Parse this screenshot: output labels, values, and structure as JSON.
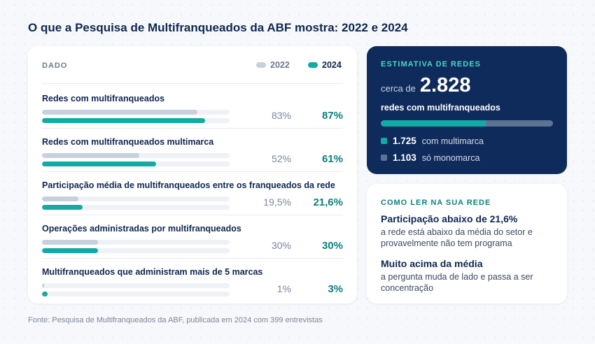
{
  "title": "O que a Pesquisa de Multifranqueados da ABF mostra: 2022 e 2024",
  "colors": {
    "bar_2022": "#c7d1dd",
    "bar_2024": "#13a9a5",
    "value_2024": "#0c7f7c",
    "navy": "#0f2b5b",
    "teal": "#13a9a5",
    "slate": "#5d7394"
  },
  "table": {
    "column_label": "DADO",
    "legend": [
      "2022",
      "2024"
    ]
  },
  "chart_data": {
    "type": "bar",
    "categories": [
      "Redes com multifranqueados",
      "Redes com multifranqueados multimarca",
      "Participação média de multifranqueados entre os franqueados da rede",
      "Operações administradas por multifranqueados",
      "Multifranqueados que administram mais de 5 marcas"
    ],
    "series": [
      {
        "name": "2022",
        "values": [
          83,
          52,
          19.5,
          30,
          1
        ],
        "labels": [
          "83%",
          "52%",
          "19,5%",
          "30%",
          "1%"
        ]
      },
      {
        "name": "2024",
        "values": [
          87,
          61,
          21.6,
          30,
          3
        ],
        "labels": [
          "87%",
          "61%",
          "21,6%",
          "30%",
          "3%"
        ]
      }
    ],
    "ylim": [
      0,
      100
    ],
    "orientation": "horizontal",
    "legend_position": "top-right"
  },
  "estimate": {
    "title": "ESTIMATIVA DE REDES",
    "prefix": "cerca de",
    "number": "2.828",
    "subtitle": "redes com multifranqueados",
    "multimarca_fraction": 0.61,
    "multimarca_count": "1.725",
    "multimarca_label": "com multimarca",
    "monomarca_count": "1.103",
    "monomarca_label": "só monomarca"
  },
  "read": {
    "title": "COMO LER NA SUA REDE",
    "items": [
      {
        "head": "Participação abaixo de 21,6%",
        "text": "a rede está abaixo da média do setor e provavelmente não tem programa"
      },
      {
        "head": "Muito acima da média",
        "text": "a pergunta muda de lado e passa a ser concentração"
      }
    ]
  },
  "source": "Fonte: Pesquisa de Multifranqueados da ABF, publicada em 2024 com 399 entrevistas"
}
